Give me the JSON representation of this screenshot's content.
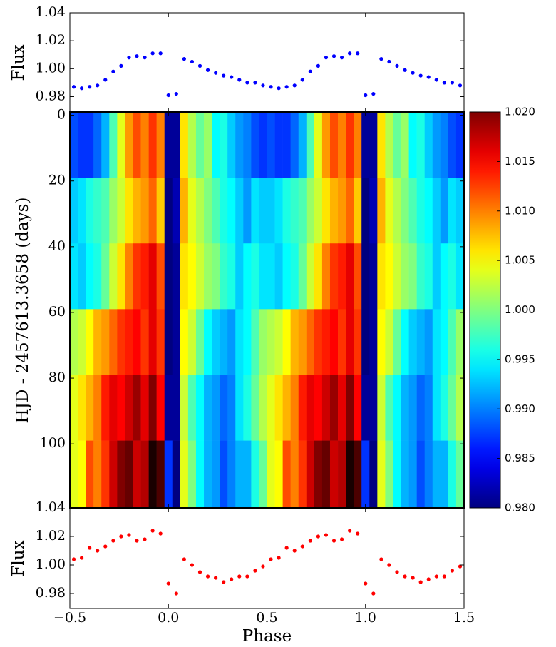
{
  "chart_data": [
    {
      "type": "scatter",
      "ylabel": "Flux",
      "color": "#0000ff",
      "xlim": [
        -0.5,
        1.5
      ],
      "ylim": [
        0.969,
        1.04
      ],
      "yticks": [
        0.98,
        {
          "value": 1.0,
          "label": "1.00"
        },
        1.02,
        1.04
      ],
      "x": [
        -0.48,
        -0.44,
        -0.4,
        -0.36,
        -0.32,
        -0.28,
        -0.24,
        -0.2,
        -0.16,
        -0.12,
        -0.08,
        -0.04,
        0,
        0.04,
        0.08,
        0.12,
        0.16,
        0.2,
        0.24,
        0.28,
        0.32,
        0.36,
        0.4,
        0.44,
        0.48,
        0.52,
        0.56,
        0.6,
        0.64,
        0.68,
        0.72,
        0.76,
        0.8,
        0.84,
        0.88,
        0.92,
        0.96,
        1.0,
        1.04,
        1.08,
        1.12,
        1.16,
        1.2,
        1.24,
        1.28,
        1.32,
        1.36,
        1.4,
        1.44,
        1.48
      ],
      "values": [
        0.987,
        0.986,
        0.987,
        0.988,
        0.992,
        0.998,
        1.002,
        1.008,
        1.009,
        1.008,
        1.011,
        1.011,
        0.981,
        0.982,
        1.007,
        1.005,
        1.002,
        0.999,
        0.997,
        0.995,
        0.994,
        0.992,
        0.99,
        0.99,
        0.988,
        0.987,
        0.986,
        0.987,
        0.988,
        0.992,
        0.998,
        1.002,
        1.008,
        1.009,
        1.008,
        1.011,
        1.011,
        0.981,
        0.982,
        1.007,
        1.005,
        1.002,
        0.999,
        0.997,
        0.995,
        0.994,
        0.992,
        0.99,
        0.99,
        0.988
      ]
    },
    {
      "type": "heatmap",
      "ylabel": "HJD - 2457613.3658 (days)",
      "colormap": "jet",
      "xlim": [
        -0.5,
        1.5
      ],
      "ylim": [
        -1,
        119.5
      ],
      "y_inverted": true,
      "yticks": [
        0,
        20,
        40,
        60,
        80,
        100
      ],
      "x_edges": [
        -0.5,
        -0.46,
        -0.42,
        -0.38,
        -0.34,
        -0.3,
        -0.26,
        -0.22,
        -0.18,
        -0.14,
        -0.1,
        -0.06,
        -0.02,
        0.02,
        0.06,
        0.1,
        0.14,
        0.18,
        0.22,
        0.26,
        0.3,
        0.34,
        0.38,
        0.42,
        0.46,
        0.5,
        0.54,
        0.58,
        0.62,
        0.66,
        0.7,
        0.74,
        0.78,
        0.82,
        0.86,
        0.9,
        0.94,
        0.98,
        1.02,
        1.06,
        1.1,
        1.14,
        1.18,
        1.22,
        1.26,
        1.3,
        1.34,
        1.38,
        1.42,
        1.46,
        1.5
      ],
      "y_edges": [
        -1,
        19,
        39,
        59,
        79,
        99,
        119.5
      ],
      "clim": [
        0.98,
        1.02
      ],
      "cticks": [
        {
          "value": 0.98,
          "label": "0.980"
        },
        {
          "value": 0.985,
          "label": "0.985"
        },
        {
          "value": 0.99,
          "label": "0.990"
        },
        {
          "value": 0.995,
          "label": "0.995"
        },
        {
          "value": 1.0,
          "label": "1.000"
        },
        {
          "value": 1.005,
          "label": "1.005"
        },
        {
          "value": 1.01,
          "label": "1.010"
        },
        {
          "value": 1.015,
          "label": "1.015"
        },
        {
          "value": 1.02,
          "label": "1.020"
        }
      ],
      "rows": [
        [
          0.988,
          0.987,
          0.987,
          0.989,
          0.992,
          0.998,
          1.004,
          1.009,
          1.012,
          1.01,
          1.013,
          1.01,
          0.981,
          0.981,
          1.006,
          1.002,
          0.999,
          1.001,
          0.995,
          0.996,
          0.993,
          0.991,
          0.99,
          0.988,
          0.987,
          0.988,
          0.987,
          0.987,
          0.989,
          0.992,
          0.998,
          1.004,
          1.009,
          1.012,
          1.01,
          1.013,
          1.01,
          0.981,
          0.981,
          1.006,
          1.002,
          0.999,
          1.001,
          0.995,
          0.996,
          0.993,
          0.991,
          0.99,
          0.988,
          0.987
        ],
        [
          0.993,
          0.994,
          0.996,
          0.997,
          0.998,
          1.001,
          1.003,
          1.006,
          1.008,
          1.009,
          1.011,
          1.007,
          0.98,
          0.982,
          1.008,
          1.004,
          1.002,
          1.0,
          0.998,
          0.996,
          0.995,
          0.993,
          0.991,
          0.994,
          0.993,
          0.993,
          0.994,
          0.996,
          0.997,
          0.998,
          1.001,
          1.003,
          1.006,
          1.008,
          1.009,
          1.011,
          1.007,
          0.98,
          0.982,
          1.008,
          1.004,
          1.002,
          1.0,
          0.998,
          0.996,
          0.995,
          0.993,
          0.991,
          0.994,
          0.993
        ],
        [
          0.994,
          0.993,
          0.995,
          0.996,
          0.999,
          1.003,
          1.006,
          1.01,
          1.013,
          1.014,
          1.016,
          1.012,
          0.98,
          0.981,
          1.006,
          1.005,
          1.003,
          1.001,
          1.0,
          0.997,
          0.996,
          0.993,
          0.995,
          0.996,
          0.994,
          0.994,
          0.993,
          0.995,
          0.996,
          0.999,
          1.003,
          1.006,
          1.01,
          1.013,
          1.014,
          1.016,
          1.012,
          0.98,
          0.981,
          1.006,
          1.005,
          1.003,
          1.001,
          1.0,
          0.997,
          0.996,
          0.993,
          0.995,
          0.996,
          0.994
        ],
        [
          1.002,
          1.003,
          1.005,
          1.008,
          1.009,
          1.011,
          1.013,
          1.014,
          1.015,
          1.013,
          1.016,
          1.013,
          0.98,
          0.981,
          1.005,
          1.003,
          0.999,
          0.995,
          0.993,
          0.992,
          0.991,
          0.994,
          0.995,
          0.998,
          1.001,
          1.002,
          1.003,
          1.005,
          1.008,
          1.009,
          1.011,
          1.013,
          1.014,
          1.015,
          1.013,
          1.016,
          1.013,
          0.98,
          0.981,
          1.005,
          1.003,
          0.999,
          0.995,
          0.993,
          0.992,
          0.991,
          0.994,
          0.995,
          0.998,
          1.001
        ],
        [
          1.004,
          1.006,
          1.008,
          1.01,
          1.014,
          1.016,
          1.015,
          1.017,
          1.019,
          1.016,
          1.02,
          1.015,
          0.981,
          0.981,
          1.003,
          0.998,
          0.995,
          0.992,
          0.991,
          0.989,
          0.99,
          0.994,
          0.996,
          0.999,
          1.002,
          1.004,
          1.006,
          1.008,
          1.01,
          1.014,
          1.016,
          1.015,
          1.017,
          1.019,
          1.016,
          1.02,
          1.015,
          0.981,
          0.981,
          1.003,
          0.998,
          0.995,
          0.992,
          0.991,
          0.989,
          0.99,
          0.994,
          0.996,
          0.999,
          1.002
        ],
        [
          1.004,
          1.005,
          1.012,
          1.01,
          1.013,
          1.017,
          1.02,
          1.021,
          1.017,
          1.018,
          1.024,
          1.022,
          0.987,
          0.98,
          1.004,
          1.0,
          0.995,
          0.992,
          0.991,
          0.988,
          0.99,
          0.992,
          0.992,
          0.996,
          0.999,
          1.004,
          1.005,
          1.012,
          1.01,
          1.013,
          1.017,
          1.02,
          1.021,
          1.017,
          1.018,
          1.024,
          1.022,
          0.987,
          0.98,
          1.004,
          1.0,
          0.995,
          0.992,
          0.991,
          0.988,
          0.99,
          0.992,
          0.992,
          0.996,
          0.999
        ]
      ]
    },
    {
      "type": "scatter",
      "ylabel": "Flux",
      "xlabel": "Phase",
      "color": "#ff0000",
      "xlim": [
        -0.5,
        1.5
      ],
      "ylim": [
        0.9695,
        1.04
      ],
      "xticks": [
        {
          "value": -0.5,
          "label": "−0.5"
        },
        {
          "value": 0,
          "label": "0.0"
        },
        0.5,
        {
          "value": 1,
          "label": "1.0"
        },
        1.5
      ],
      "yticks": [
        0.98,
        {
          "value": 1.0,
          "label": "1.00"
        },
        1.02,
        1.04
      ],
      "x": [
        -0.48,
        -0.44,
        -0.4,
        -0.36,
        -0.32,
        -0.28,
        -0.24,
        -0.2,
        -0.16,
        -0.12,
        -0.08,
        -0.04,
        0,
        0.04,
        0.08,
        0.12,
        0.16,
        0.2,
        0.24,
        0.28,
        0.32,
        0.36,
        0.4,
        0.44,
        0.48,
        0.52,
        0.56,
        0.6,
        0.64,
        0.68,
        0.72,
        0.76,
        0.8,
        0.84,
        0.88,
        0.92,
        0.96,
        1.0,
        1.04,
        1.08,
        1.12,
        1.16,
        1.2,
        1.24,
        1.28,
        1.32,
        1.36,
        1.4,
        1.44,
        1.48
      ],
      "values": [
        1.004,
        1.005,
        1.012,
        1.01,
        1.013,
        1.017,
        1.02,
        1.021,
        1.017,
        1.018,
        1.024,
        1.022,
        0.987,
        0.98,
        1.004,
        1.0,
        0.995,
        0.992,
        0.991,
        0.988,
        0.99,
        0.992,
        0.992,
        0.996,
        0.999,
        1.004,
        1.005,
        1.012,
        1.01,
        1.013,
        1.017,
        1.02,
        1.021,
        1.017,
        1.018,
        1.024,
        1.022,
        0.987,
        0.98,
        1.004,
        1.0,
        0.995,
        0.992,
        0.991,
        0.988,
        0.99,
        0.992,
        0.992,
        0.996,
        0.999
      ]
    }
  ]
}
